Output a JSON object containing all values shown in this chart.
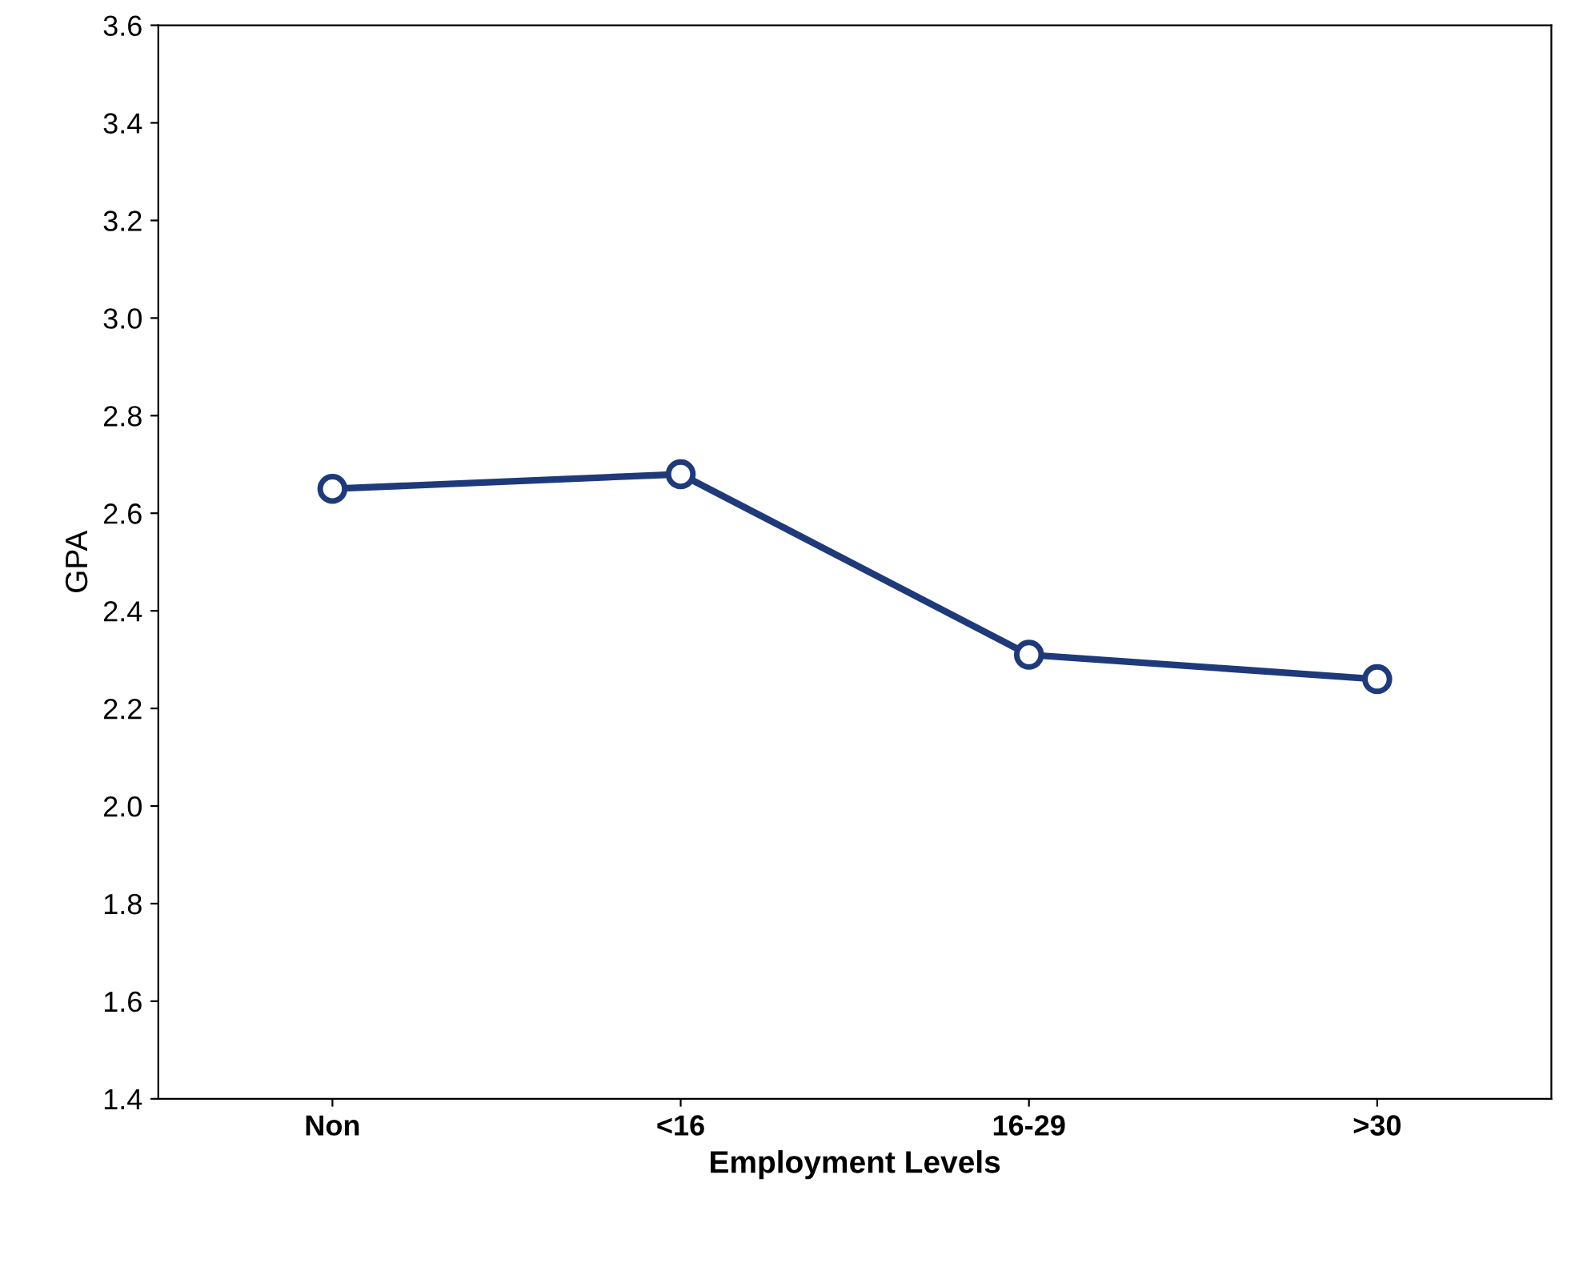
{
  "chart_data": {
    "type": "line",
    "xlabel": "Employment Levels",
    "ylabel": "GPA",
    "categories": [
      "Non",
      "<16",
      "16-29",
      ">30"
    ],
    "series": [
      {
        "color": "#1f3a7a",
        "values": [
          2.65,
          2.68,
          2.31,
          2.26
        ]
      }
    ],
    "ylim": [
      1.4,
      3.6
    ],
    "yticks": [
      1.4,
      1.6,
      1.8,
      {
        "value": 2,
        "label": "2.0"
      },
      2.2,
      2.4,
      2.6,
      2.8,
      {
        "value": 3,
        "label": "3.0"
      },
      3.2,
      3.4,
      3.6
    ],
    "grid": false,
    "marker": "circle",
    "line_style": "solid"
  }
}
